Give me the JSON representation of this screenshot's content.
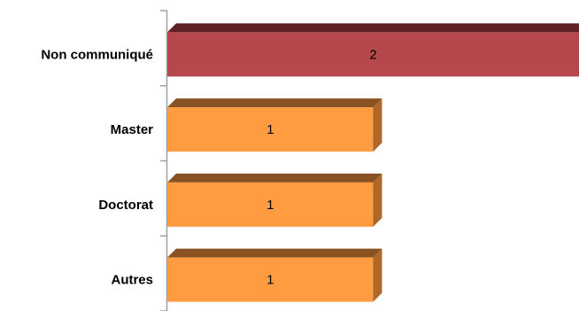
{
  "chart_data": {
    "type": "bar",
    "orientation": "horizontal",
    "categories": [
      "Non communiqué",
      "Master",
      "Doctorat",
      "Autres"
    ],
    "values": [
      2,
      1,
      1,
      1
    ],
    "data_labels": [
      "2",
      "1",
      "1",
      "1"
    ],
    "title": "",
    "xlabel": "",
    "ylabel": "",
    "xlim": [
      0,
      2
    ],
    "grid": false,
    "legend": "none",
    "colors": {
      "highlight": {
        "front": "#B5474D",
        "top": "#5E2226",
        "side": "#7A2C31"
      },
      "default": {
        "front": "#FF9C42",
        "top": "#8A5222",
        "side": "#B0672A"
      },
      "axis": "#A0A0A0"
    },
    "highlight_index": 0
  }
}
